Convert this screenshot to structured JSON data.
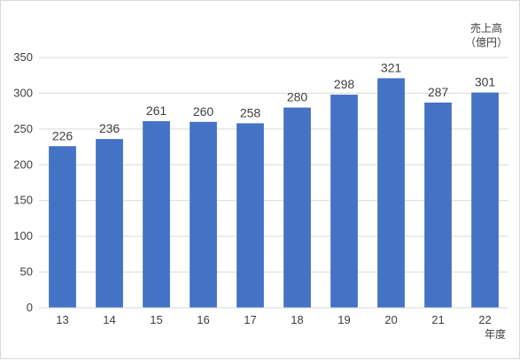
{
  "chart_data": {
    "type": "bar",
    "categories": [
      "13",
      "14",
      "15",
      "16",
      "17",
      "18",
      "19",
      "20",
      "21",
      "22"
    ],
    "series": [
      {
        "values": [
          226,
          236,
          261,
          260,
          258,
          280,
          298,
          321,
          287,
          301
        ]
      }
    ],
    "ylim": [
      0,
      350
    ],
    "yticks": [
      0,
      50,
      100,
      150,
      200,
      250,
      300,
      350
    ],
    "ylabel_line1": "売上高",
    "ylabel_line2": "（億円）",
    "xlabel": "年度",
    "grid": true,
    "bar_color": "#4472c4",
    "grid_color": "#d9d9d9",
    "text_color": "#404040"
  }
}
